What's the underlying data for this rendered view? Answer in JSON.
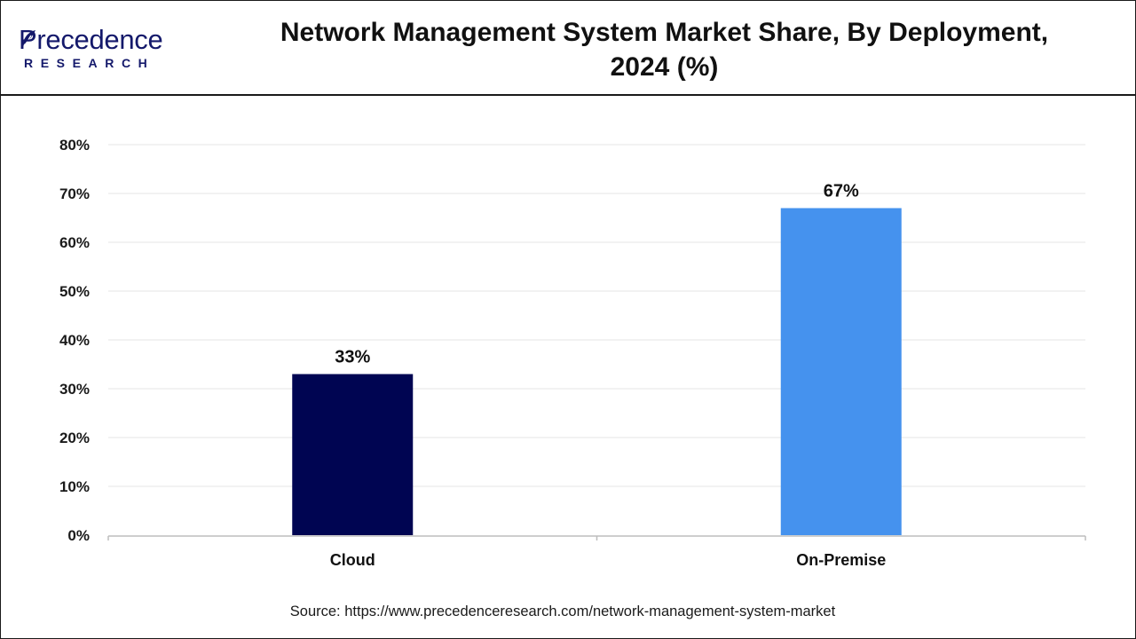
{
  "logo": {
    "word": "Precedence",
    "sub": "RESEARCH"
  },
  "title_line1": "Network Management System Market Share, By Deployment,",
  "title_line2": "2024 (%)",
  "source": "Source: https://www.precedenceresearch.com/network-management-system-market",
  "colors": {
    "cloud": "#000552",
    "onpremise": "#4592ee",
    "brand": "#14196b",
    "grid": "#e6e6e6"
  },
  "chart_data": {
    "type": "bar",
    "title": "Network Management System Market Share, By Deployment, 2024 (%)",
    "categories": [
      "Cloud",
      "On-Premise"
    ],
    "values": [
      33,
      67
    ],
    "data_labels": [
      "33%",
      "67%"
    ],
    "bar_colors": [
      "#000552",
      "#4592ee"
    ],
    "ylim": [
      0,
      80
    ],
    "yticks": [
      "0%",
      "10%",
      "20%",
      "30%",
      "40%",
      "50%",
      "60%",
      "70%",
      "80%"
    ],
    "xlabel": "",
    "ylabel": "",
    "grid": true,
    "legend": "none"
  }
}
